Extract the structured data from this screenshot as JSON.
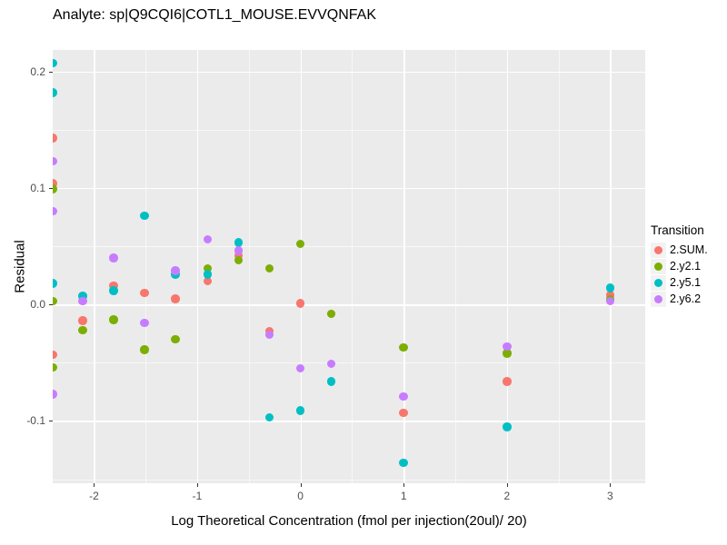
{
  "title": "Analyte: sp|Q9CQI6|COTL1_MOUSE.EVVQNFAK",
  "colors": {
    "panel_background": "#EBEBEB",
    "gridline": "#FFFFFF",
    "tick_label": "#4D4D4D",
    "text": "#000000",
    "legend_key_background": "#F2F2F2"
  },
  "chart_data": {
    "type": "scatter",
    "title": "Analyte: sp|Q9CQI6|COTL1_MOUSE.EVVQNFAK",
    "xlabel": "Log Theoretical Concentration (fmol per injection(20ul)/ 20)",
    "ylabel": "Residual",
    "xlim": [
      -2.4,
      3.34
    ],
    "ylim": [
      -0.1535,
      0.2185
    ],
    "grid": true,
    "legend_title": "Transition",
    "legend_position": "right",
    "x_major_ticks": [
      {
        "value": -2,
        "label": "-2"
      },
      {
        "value": -1,
        "label": "-1"
      },
      {
        "value": 0,
        "label": "0"
      },
      {
        "value": 1,
        "label": "1"
      },
      {
        "value": 2,
        "label": "2"
      },
      {
        "value": 3,
        "label": "3"
      }
    ],
    "x_minor_ticks": [
      -1.5,
      -0.5,
      0.5,
      1.5,
      2.5
    ],
    "y_major_ticks": [
      {
        "value": 0.2,
        "label": "0.2"
      },
      {
        "value": 0.1,
        "label": "0.1"
      },
      {
        "value": 0.0,
        "label": "0.0"
      },
      {
        "value": -0.1,
        "label": "-0.1"
      }
    ],
    "y_minor_ticks": [
      0.15,
      0.05,
      -0.05,
      -0.15
    ],
    "series": [
      {
        "name": "2.SUM.",
        "color": "#F8766D",
        "points": [
          [
            -2.4,
            0.143
          ],
          [
            -2.4,
            0.104
          ],
          [
            -2.4,
            -0.043
          ],
          [
            -2.11,
            -0.014
          ],
          [
            -1.81,
            0.016
          ],
          [
            -1.51,
            0.01
          ],
          [
            -1.21,
            0.005
          ],
          [
            -0.9,
            0.02
          ],
          [
            -0.6,
            0.042
          ],
          [
            -0.3,
            -0.023
          ],
          [
            0,
            0.001
          ],
          [
            0.3,
            -0.008
          ],
          [
            1,
            -0.093
          ],
          [
            2,
            -0.066
          ],
          [
            3,
            0.008
          ]
        ]
      },
      {
        "name": "2.y2.1",
        "color": "#7CAE00",
        "points": [
          [
            -2.4,
            0.099
          ],
          [
            -2.4,
            0.003
          ],
          [
            -2.4,
            -0.054
          ],
          [
            -2.11,
            -0.022
          ],
          [
            -1.81,
            -0.013
          ],
          [
            -1.51,
            -0.039
          ],
          [
            -1.21,
            -0.03
          ],
          [
            -0.9,
            0.031
          ],
          [
            -0.6,
            0.038
          ],
          [
            -0.3,
            0.031
          ],
          [
            0,
            0.052
          ],
          [
            0.3,
            -0.008
          ],
          [
            1,
            -0.037
          ],
          [
            2,
            -0.042
          ],
          [
            3,
            0.004
          ]
        ]
      },
      {
        "name": "2.y5.1",
        "color": "#00BFC4",
        "points": [
          [
            -2.4,
            0.207
          ],
          [
            -2.4,
            0.182
          ],
          [
            -2.4,
            0.018
          ],
          [
            -2.11,
            0.007
          ],
          [
            -1.81,
            0.012
          ],
          [
            -1.51,
            0.076
          ],
          [
            -1.21,
            0.026
          ],
          [
            -0.9,
            0.026
          ],
          [
            -0.6,
            0.053
          ],
          [
            -0.3,
            -0.097
          ],
          [
            0,
            -0.091
          ],
          [
            0.3,
            -0.066
          ],
          [
            1,
            -0.136
          ],
          [
            2,
            -0.105
          ],
          [
            3,
            0.014
          ]
        ]
      },
      {
        "name": "2.y6.2",
        "color": "#C77CFF",
        "points": [
          [
            -2.4,
            0.123
          ],
          [
            -2.4,
            0.08
          ],
          [
            -2.4,
            -0.077
          ],
          [
            -2.11,
            0.003
          ],
          [
            -1.81,
            0.04
          ],
          [
            -1.51,
            -0.016
          ],
          [
            -1.21,
            0.029
          ],
          [
            -0.9,
            0.056
          ],
          [
            -0.6,
            0.046
          ],
          [
            -0.3,
            -0.026
          ],
          [
            0,
            -0.055
          ],
          [
            0.3,
            -0.051
          ],
          [
            1,
            -0.079
          ],
          [
            2,
            -0.036
          ],
          [
            3,
            0.003
          ]
        ]
      }
    ]
  }
}
